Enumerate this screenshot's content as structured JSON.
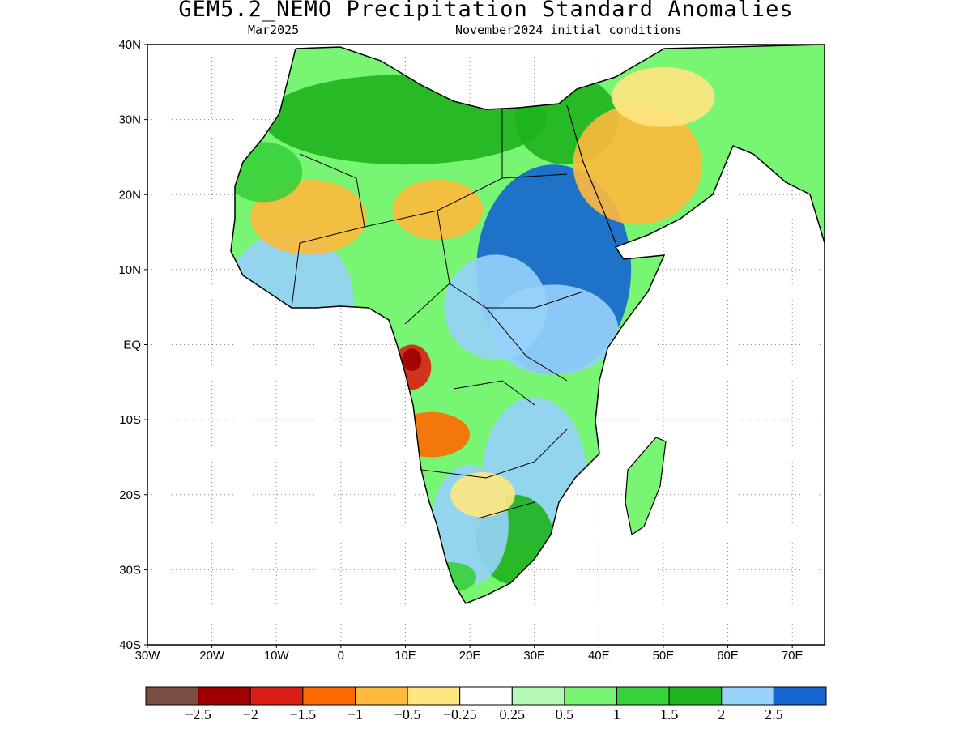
{
  "header": {
    "title": "GEM5.2_NEMO Precipitation Standard Anomalies",
    "valid_month": "Mar2025",
    "init_conditions": "November2024 initial conditions"
  },
  "map": {
    "lon_range": [
      -30,
      75
    ],
    "lat_range": [
      -40,
      40
    ],
    "lon_ticks": [
      {
        "value": -30,
        "label": "30W"
      },
      {
        "value": -20,
        "label": "20W"
      },
      {
        "value": -10,
        "label": "10W"
      },
      {
        "value": 0,
        "label": "0"
      },
      {
        "value": 10,
        "label": "10E"
      },
      {
        "value": 20,
        "label": "20E"
      },
      {
        "value": 30,
        "label": "30E"
      },
      {
        "value": 40,
        "label": "40E"
      },
      {
        "value": 50,
        "label": "50E"
      },
      {
        "value": 60,
        "label": "60E"
      },
      {
        "value": 70,
        "label": "70E"
      }
    ],
    "lat_ticks": [
      {
        "value": 40,
        "label": "40N"
      },
      {
        "value": 30,
        "label": "30N"
      },
      {
        "value": 20,
        "label": "20N"
      },
      {
        "value": 10,
        "label": "10N"
      },
      {
        "value": 0,
        "label": "EQ"
      },
      {
        "value": -10,
        "label": "10S"
      },
      {
        "value": -20,
        "label": "20S"
      },
      {
        "value": -30,
        "label": "30S"
      },
      {
        "value": -40,
        "label": "40S"
      }
    ],
    "gridlines": "dotted",
    "anomaly_regions": [
      {
        "level": 2,
        "lon": 10,
        "lat": 30,
        "rx": 22,
        "ry": 6
      },
      {
        "level": 2,
        "lon": 35,
        "lat": 30,
        "rx": 8,
        "ry": 6
      },
      {
        "level": 4,
        "lon": 33,
        "lat": 10,
        "rx": 12,
        "ry": 14
      },
      {
        "level": 3,
        "lon": 33,
        "lat": 2,
        "rx": 10,
        "ry": 6
      },
      {
        "level": 3,
        "lon": 30,
        "lat": -17,
        "rx": 8,
        "ry": 10
      },
      {
        "level": 2,
        "lon": 27,
        "lat": -26,
        "rx": 6,
        "ry": 6
      },
      {
        "level": 3,
        "lon": -8,
        "lat": 6,
        "rx": 10,
        "ry": 9
      },
      {
        "level": 3,
        "lon": 24,
        "lat": 5,
        "rx": 8,
        "ry": 7
      },
      {
        "level": 3,
        "lon": 20,
        "lat": -24,
        "rx": 6,
        "ry": 8
      },
      {
        "level": -2,
        "lon": -5,
        "lat": 17,
        "rx": 9,
        "ry": 5
      },
      {
        "level": -2,
        "lon": 15,
        "lat": 18,
        "rx": 7,
        "ry": 4
      },
      {
        "level": -2,
        "lon": 46,
        "lat": 24,
        "rx": 10,
        "ry": 8
      },
      {
        "level": -1,
        "lon": 50,
        "lat": 33,
        "rx": 8,
        "ry": 4
      },
      {
        "level": -3,
        "lon": 14,
        "lat": -12,
        "rx": 6,
        "ry": 3
      },
      {
        "level": -4,
        "lon": 11,
        "lat": -3,
        "rx": 3,
        "ry": 3
      },
      {
        "level": -5,
        "lon": 11,
        "lat": -2,
        "rx": 1.5,
        "ry": 1.5
      },
      {
        "level": -1,
        "lon": 22,
        "lat": -20,
        "rx": 5,
        "ry": 3
      },
      {
        "level": 1,
        "lon": -12,
        "lat": 23,
        "rx": 6,
        "ry": 4
      },
      {
        "level": 1,
        "lon": 17,
        "lat": -31,
        "rx": 4,
        "ry": 2
      }
    ]
  },
  "legend": {
    "colors": [
      "#7b4e45",
      "#a00000",
      "#dc1e14",
      "#ff6a00",
      "#ffb93c",
      "#ffe680",
      "#ffffff",
      "#b4fab4",
      "#78f573",
      "#37d23c",
      "#1eb41e",
      "#96d2fa",
      "#1464d2"
    ],
    "labels": [
      "−2.5",
      "−2",
      "−1.5",
      "−1",
      "−0.5",
      "−0.25",
      "0.25",
      "0.5",
      "1",
      "1.5",
      "2",
      "2.5"
    ]
  }
}
